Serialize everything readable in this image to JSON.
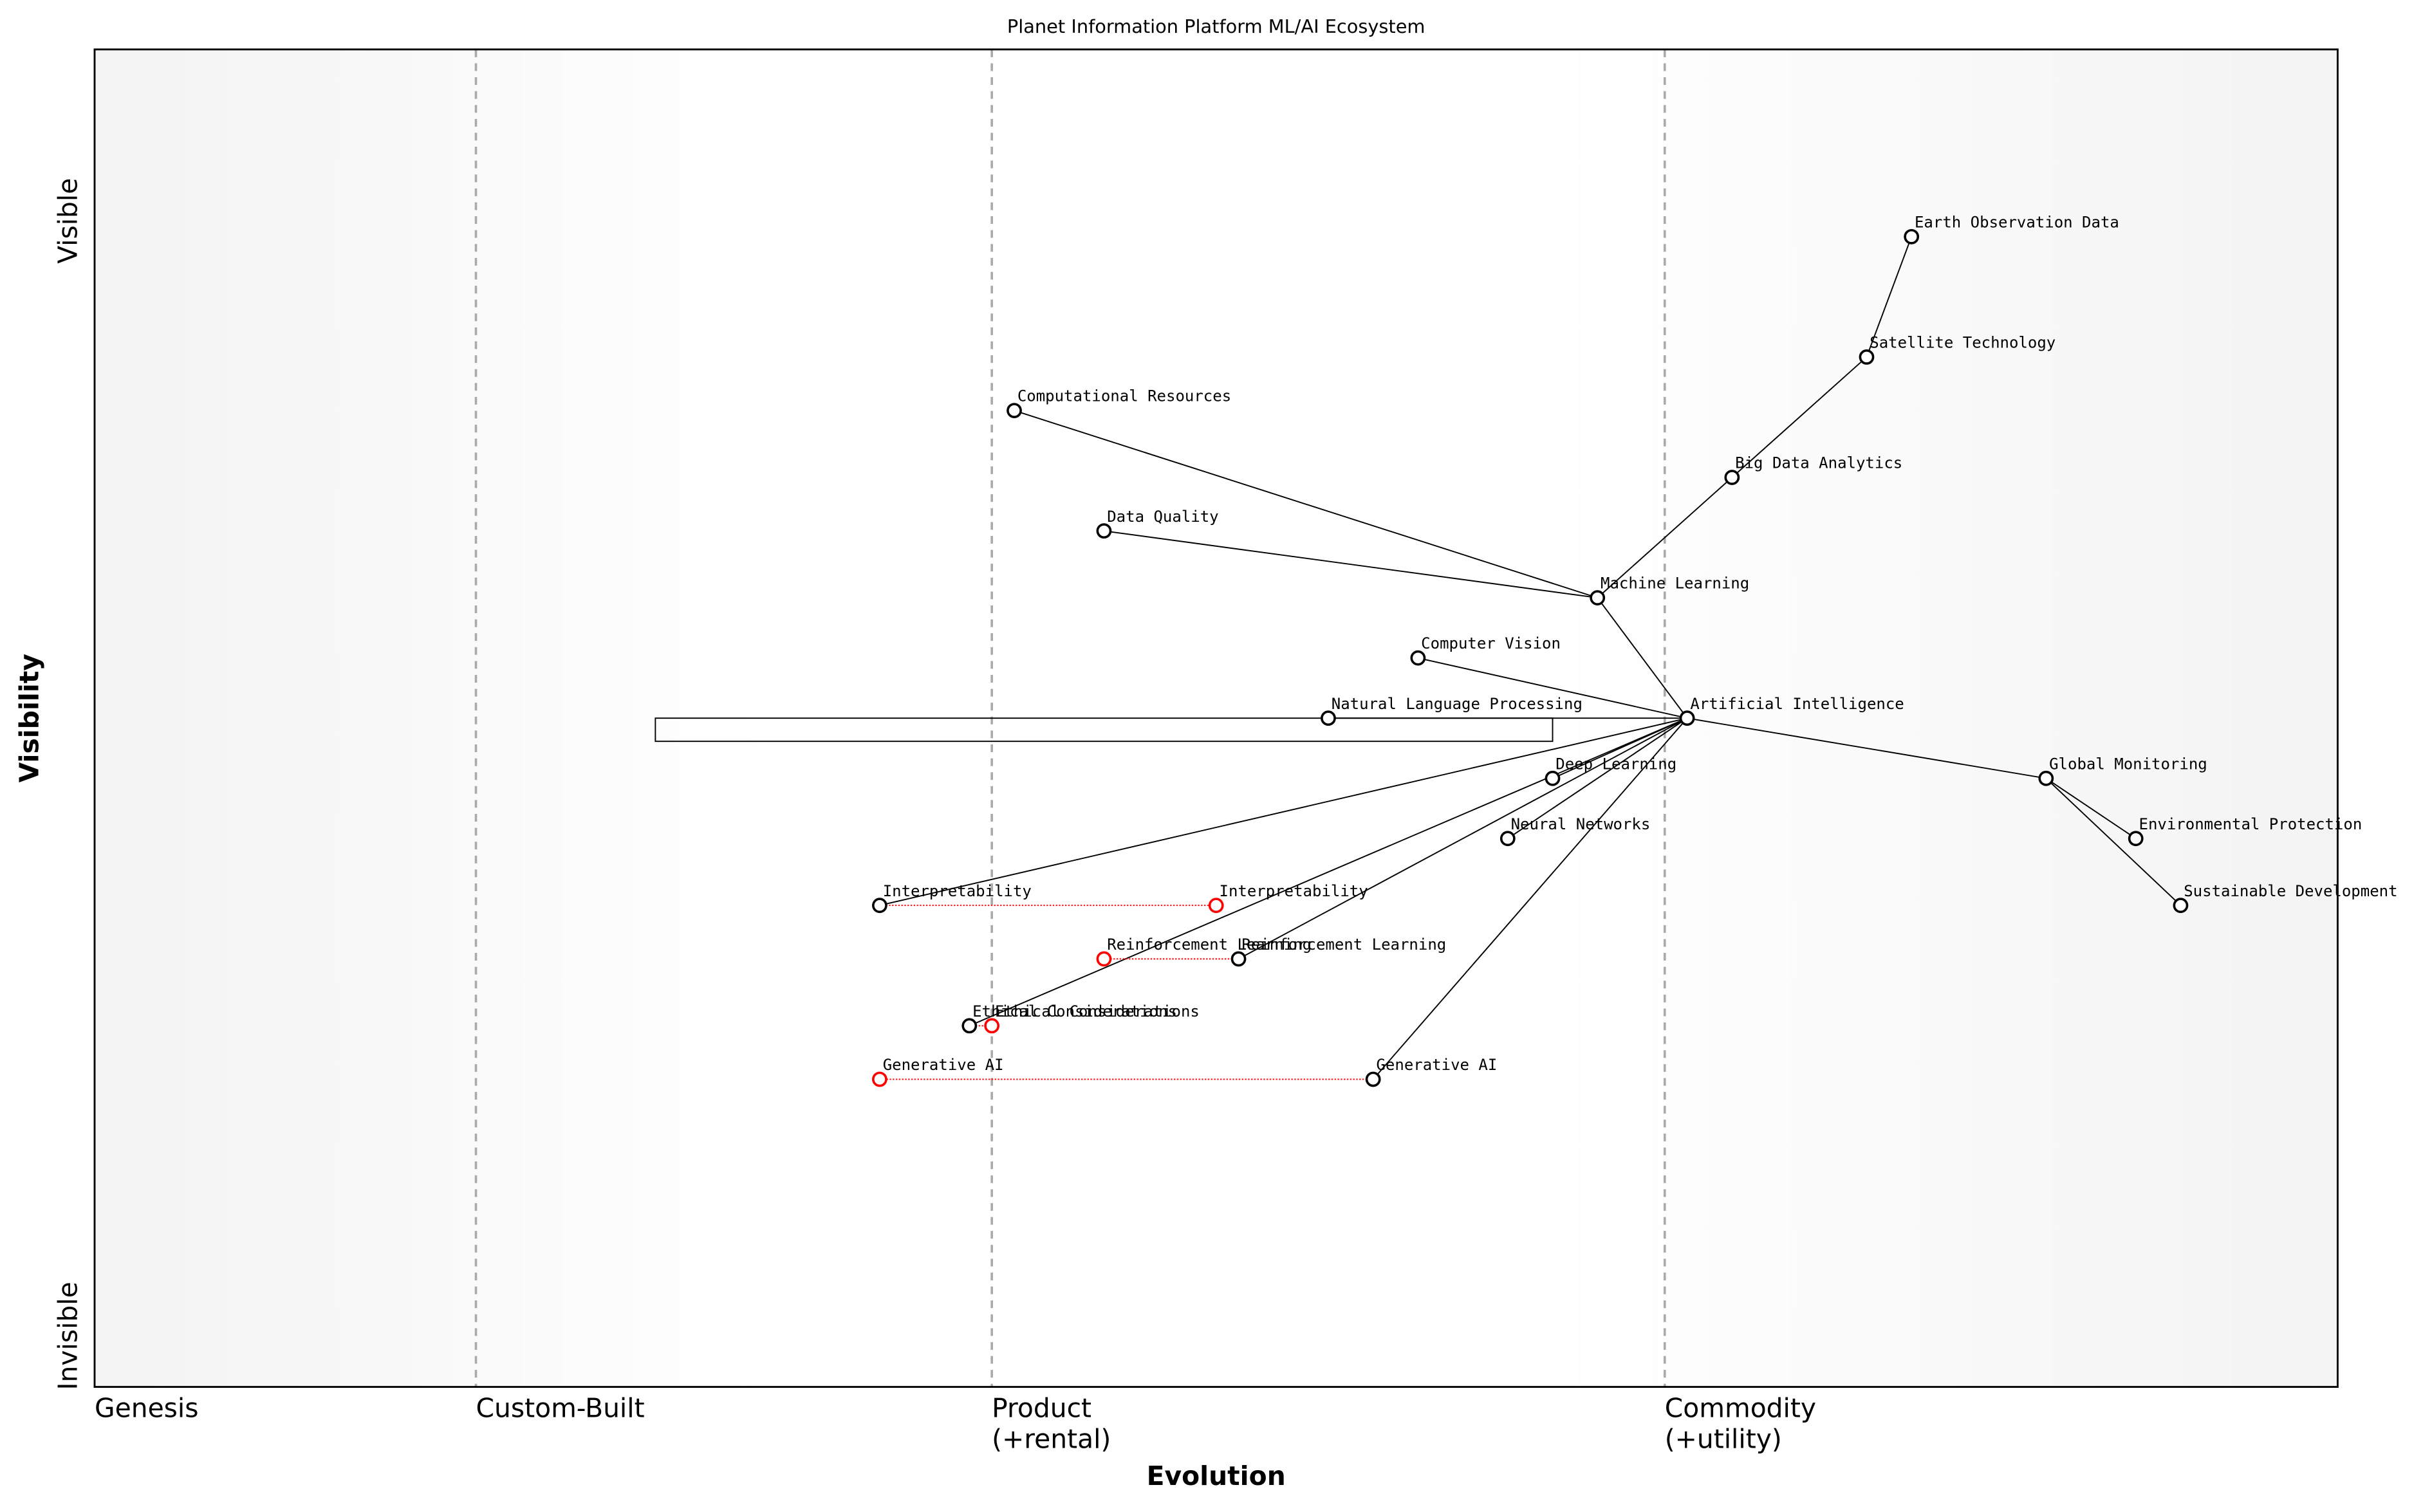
{
  "map": {
    "title": "Planet Information Platform ML/AI Ecosystem",
    "x_label": "Evolution",
    "y_label": "Visibility",
    "y_top_label": "Visible",
    "y_bottom_label": "Invisible",
    "stages": [
      {
        "position": 0,
        "lines": [
          "Genesis"
        ]
      },
      {
        "position": 0.17,
        "lines": [
          "Custom-Built"
        ]
      },
      {
        "position": 0.4,
        "lines": [
          "Product",
          "(+rental)"
        ]
      },
      {
        "position": 0.7,
        "lines": [
          "Commodity",
          "(+utility)"
        ]
      }
    ],
    "nodes": [
      {
        "label": "Artificial Intelligence",
        "evolution": 0.71,
        "visibility": 0.5,
        "color": "#000000"
      },
      {
        "label": "Machine Learning",
        "evolution": 0.67,
        "visibility": 0.59,
        "color": "#000000"
      },
      {
        "label": "Big Data Analytics",
        "evolution": 0.73,
        "visibility": 0.68,
        "color": "#000000"
      },
      {
        "label": "Satellite Technology",
        "evolution": 0.79,
        "visibility": 0.77,
        "color": "#000000"
      },
      {
        "label": "Earth Observation Data",
        "evolution": 0.81,
        "visibility": 0.86,
        "color": "#000000"
      },
      {
        "label": "Computational Resources",
        "evolution": 0.41,
        "visibility": 0.73,
        "color": "#000000"
      },
      {
        "label": "Data Quality",
        "evolution": 0.45,
        "visibility": 0.64,
        "color": "#000000"
      },
      {
        "label": "Computer Vision",
        "evolution": 0.59,
        "visibility": 0.545,
        "color": "#000000"
      },
      {
        "label": "Natural Language Processing",
        "evolution": 0.55,
        "visibility": 0.5,
        "color": "#000000"
      },
      {
        "label": "Deep Learning",
        "evolution": 0.65,
        "visibility": 0.455,
        "color": "#000000"
      },
      {
        "label": "Neural Networks",
        "evolution": 0.63,
        "visibility": 0.41,
        "color": "#000000"
      },
      {
        "label": "Global Monitoring",
        "evolution": 0.87,
        "visibility": 0.455,
        "color": "#000000"
      },
      {
        "label": "Environmental Protection",
        "evolution": 0.91,
        "visibility": 0.41,
        "color": "#000000"
      },
      {
        "label": "Sustainable Development",
        "evolution": 0.93,
        "visibility": 0.36,
        "color": "#000000"
      },
      {
        "label": "Interpretability",
        "evolution": 0.35,
        "visibility": 0.36,
        "color": "#000000"
      },
      {
        "label": "Interpretability",
        "evolution": 0.5,
        "visibility": 0.36,
        "color": "#ff0000"
      },
      {
        "label": "Reinforcement Learning",
        "evolution": 0.51,
        "visibility": 0.32,
        "color": "#000000"
      },
      {
        "label": "Reinforcement Learning",
        "evolution": 0.45,
        "visibility": 0.32,
        "color": "#ff0000"
      },
      {
        "label": "Ethical Considerations",
        "evolution": 0.39,
        "visibility": 0.27,
        "color": "#000000"
      },
      {
        "label": "Ethical Considerations",
        "evolution": 0.4,
        "visibility": 0.27,
        "color": "#ff0000"
      },
      {
        "label": "Generative AI",
        "evolution": 0.57,
        "visibility": 0.23,
        "color": "#000000"
      },
      {
        "label": "Generative AI",
        "evolution": 0.35,
        "visibility": 0.23,
        "color": "#ff0000"
      }
    ],
    "links": [
      [
        4,
        3
      ],
      [
        3,
        2
      ],
      [
        2,
        1
      ],
      [
        1,
        5
      ],
      [
        1,
        6
      ],
      [
        1,
        0
      ],
      [
        0,
        7
      ],
      [
        0,
        8
      ],
      [
        0,
        9
      ],
      [
        0,
        10
      ],
      [
        0,
        14
      ],
      [
        0,
        18
      ],
      [
        0,
        16
      ],
      [
        0,
        20
      ],
      [
        0,
        11
      ],
      [
        11,
        12
      ],
      [
        11,
        13
      ]
    ],
    "evolve_links": [
      [
        14,
        15
      ],
      [
        16,
        17
      ],
      [
        18,
        19
      ],
      [
        20,
        21
      ]
    ],
    "pipeline": {
      "node": 8,
      "start": 0.25,
      "end": 0.65
    }
  }
}
